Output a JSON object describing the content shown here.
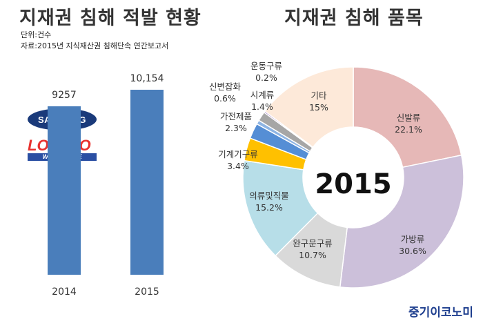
{
  "left": {
    "title": "지재권 침해 적발 현황",
    "unit_note": "단위:건수",
    "source_note": "자료:2015년 지식재산권 침해단속 연간보고서",
    "logos": {
      "sanmeng": "SANMENG",
      "lostco_main": "LOSTCO",
      "lostco_sub": "WHOLESAVE"
    }
  },
  "right": {
    "title": "지재권 침해 품목"
  },
  "footer": {
    "brand": "중기이코노미"
  },
  "chart_data": [
    {
      "type": "bar",
      "title": "지재권 침해 적발 현황",
      "categories": [
        "2014",
        "2015"
      ],
      "values": [
        9257,
        10154
      ],
      "value_labels": [
        "9257",
        "10,154"
      ],
      "color": "#4a7ebb",
      "grid": false
    },
    {
      "type": "pie",
      "title": "지재권 침해 품목",
      "center_label": "2015",
      "slices": [
        {
          "name": "신발류",
          "label": "22.1%",
          "value": 22.1,
          "color": "#e6b8b7"
        },
        {
          "name": "가방류",
          "label": "30.6%",
          "value": 30.6,
          "color": "#ccc0da"
        },
        {
          "name": "완구문구류",
          "label": "10.7%",
          "value": 10.7,
          "color": "#d9d9d9"
        },
        {
          "name": "의류및직물",
          "label": "15.2%",
          "value": 15.2,
          "color": "#b7dee8"
        },
        {
          "name": "기계기구류",
          "label": "3.4%",
          "value": 3.4,
          "color": "#ffc000"
        },
        {
          "name": "가전제품",
          "label": "2.3%",
          "value": 2.3,
          "color": "#558ed5"
        },
        {
          "name": "신변잡화",
          "label": "0.6%",
          "value": 0.6,
          "color": "#8eb4e3"
        },
        {
          "name": "시계류",
          "label": "1.4%",
          "value": 1.4,
          "color": "#a6a6a6"
        },
        {
          "name": "운동구류",
          "label": "0.2%",
          "value": 0.2,
          "color": "#7030a0"
        },
        {
          "name": "기타",
          "label": "15%",
          "value": 15,
          "color": "#fde9d9"
        }
      ]
    }
  ]
}
